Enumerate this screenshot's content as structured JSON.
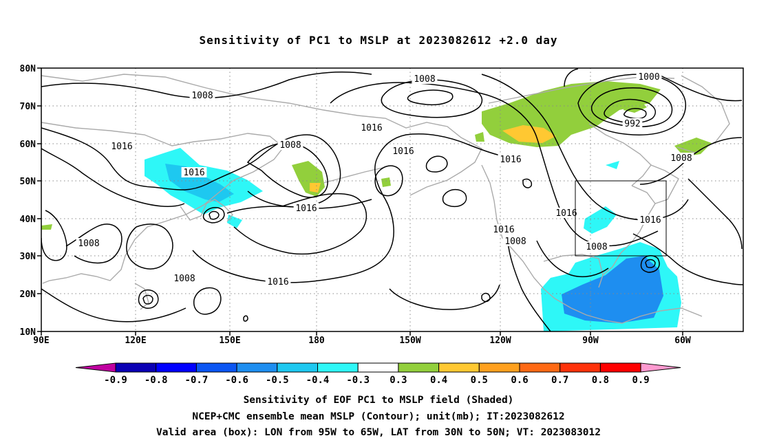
{
  "title": "Sensitivity of PC1 to MSLP at 2023082612 +2.0 day",
  "lat_labels": [
    "80N",
    "70N",
    "60N",
    "50N",
    "40N",
    "30N",
    "20N",
    "10N"
  ],
  "lon_labels": [
    "90E",
    "120E",
    "150E",
    "180",
    "150W",
    "120W",
    "90W",
    "60W"
  ],
  "contour_labels": [
    "1008",
    "1008",
    "1008",
    "1000",
    "992",
    "1016",
    "1016",
    "1016",
    "1008",
    "1016",
    "1016",
    "1016",
    "1016",
    "1016",
    "1008",
    "1016",
    "1008",
    "1008",
    "1008",
    "1016"
  ],
  "colorbar": {
    "labels": [
      "-0.9",
      "-0.8",
      "-0.7",
      "-0.6",
      "-0.5",
      "-0.4",
      "-0.3",
      "0.3",
      "0.4",
      "0.5",
      "0.6",
      "0.7",
      "0.8",
      "0.9"
    ],
    "colors": [
      "#c000a0",
      "#0a00b4",
      "#0000ff",
      "#0a55f2",
      "#1e8ef0",
      "#1ec8f0",
      "#2ef7f7",
      "#ffffff",
      "#92cf3c",
      "#ffc832",
      "#ffa01e",
      "#ff6914",
      "#ff320a",
      "#ff0000",
      "#ff9ad0"
    ]
  },
  "captions": [
    "Sensitivity of EOF PC1 to MSLP field (Shaded)",
    "NCEP+CMC ensemble mean MSLP (Contour); unit(mb); IT:2023082612",
    "Valid area (box): LON from 95W to 65W, LAT from 30N to 50N; VT: 2023083012"
  ],
  "valid_box": {
    "lon_min": "95W",
    "lon_max": "65W",
    "lat_min": "30N",
    "lat_max": "50N"
  }
}
